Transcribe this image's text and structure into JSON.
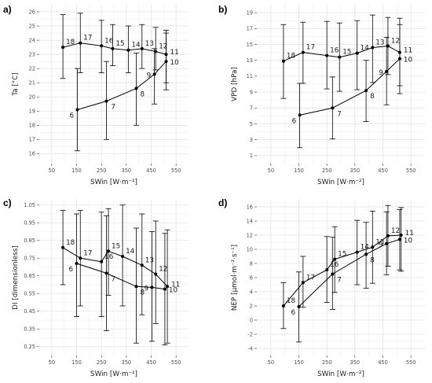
{
  "chart_data": [
    {
      "panel": "a)",
      "type": "line",
      "xlabel": "SWin [W·m⁻²]",
      "ylabel": "Ta [°C]",
      "xlim": [
        0,
        600
      ],
      "xticks": [
        50,
        150,
        250,
        350,
        450,
        550
      ],
      "ylim": [
        15.3,
        26.5
      ],
      "yticks": [
        16,
        17,
        18,
        19,
        20,
        21,
        22,
        23,
        24,
        25,
        26
      ],
      "series": [
        {
          "points": [
            {
              "label": "18",
              "x": 95,
              "y": 23.5,
              "lo": 21.3,
              "hi": 25.8
            },
            {
              "label": "17",
              "x": 165,
              "y": 23.8,
              "lo": 21.7,
              "hi": 25.9
            },
            {
              "label": "16",
              "x": 250,
              "y": 23.6,
              "lo": 21.7,
              "hi": 25.4
            },
            {
              "label": "15",
              "x": 295,
              "y": 23.4,
              "lo": 22.2,
              "hi": 25.1
            },
            {
              "label": "14",
              "x": 358,
              "y": 23.3,
              "lo": 21.7,
              "hi": 25.0
            },
            {
              "label": "13",
              "x": 413,
              "y": 23.4,
              "lo": 22.0,
              "hi": 25.1
            },
            {
              "label": "12",
              "x": 468,
              "y": 23.2,
              "lo": 21.9,
              "hi": 24.9
            },
            {
              "label": "11",
              "x": 510,
              "y": 23.0,
              "lo": 21.0,
              "hi": 24.7
            }
          ]
        },
        {
          "points": [
            {
              "label": "6",
              "x": 153,
              "y": 19.1,
              "lo": 16.2,
              "hi": 22.0
            },
            {
              "label": "7",
              "x": 270,
              "y": 19.7,
              "lo": 17.0,
              "hi": 22.5
            },
            {
              "label": "8",
              "x": 390,
              "y": 20.6,
              "lo": 18.0,
              "hi": 23.1
            },
            {
              "label": "9",
              "x": 463,
              "y": 21.6,
              "lo": 19.5,
              "hi": 23.4
            },
            {
              "label": "10",
              "x": 510,
              "y": 22.5,
              "lo": 20.5,
              "hi": 24.5
            }
          ]
        }
      ]
    },
    {
      "panel": "b)",
      "type": "line",
      "xlabel": "SWin [W·m⁻²]",
      "ylabel": "VPD [hPa]",
      "xlim": [
        0,
        600
      ],
      "xticks": [
        50,
        150,
        250,
        350,
        450,
        550
      ],
      "ylim": [
        0,
        20
      ],
      "yticks": [
        1,
        3,
        5,
        7,
        9,
        11,
        13,
        15,
        17,
        19
      ],
      "series": [
        {
          "points": [
            {
              "label": "18",
              "x": 95,
              "y": 12.9,
              "lo": 8.2,
              "hi": 17.5
            },
            {
              "label": "17",
              "x": 165,
              "y": 14.0,
              "lo": 10.1,
              "hi": 17.8
            },
            {
              "label": "16",
              "x": 250,
              "y": 13.6,
              "lo": 9.4,
              "hi": 17.9
            },
            {
              "label": "15",
              "x": 295,
              "y": 13.4,
              "lo": 9.1,
              "hi": 17.7
            },
            {
              "label": "14",
              "x": 358,
              "y": 13.9,
              "lo": 9.3,
              "hi": 18.0
            },
            {
              "label": "13",
              "x": 413,
              "y": 14.6,
              "lo": 10.2,
              "hi": 18.7
            },
            {
              "label": "12",
              "x": 468,
              "y": 14.8,
              "lo": 11.2,
              "hi": 18.4
            },
            {
              "label": "11",
              "x": 510,
              "y": 14.0,
              "lo": 9.8,
              "hi": 18.3
            }
          ]
        },
        {
          "points": [
            {
              "label": "6",
              "x": 153,
              "y": 6.1,
              "lo": 2.0,
              "hi": 10.1
            },
            {
              "label": "7",
              "x": 270,
              "y": 7.0,
              "lo": 3.1,
              "hi": 10.9
            },
            {
              "label": "8",
              "x": 390,
              "y": 9.2,
              "lo": 5.3,
              "hi": 13.0
            },
            {
              "label": "9",
              "x": 463,
              "y": 11.6,
              "lo": 7.4,
              "hi": 15.9
            },
            {
              "label": "10",
              "x": 510,
              "y": 13.2,
              "lo": 8.8,
              "hi": 17.5
            }
          ]
        }
      ]
    },
    {
      "panel": "c)",
      "type": "line",
      "xlabel": "SWin [W·m⁻²]",
      "ylabel": "DI [dimensionless]",
      "xlim": [
        0,
        600
      ],
      "xticks": [
        50,
        150,
        250,
        350,
        450,
        550
      ],
      "ylim": [
        0.2,
        1.08
      ],
      "yticks": [
        0.25,
        0.35,
        0.45,
        0.55,
        0.65,
        0.75,
        0.85,
        0.95,
        1.05
      ],
      "series": [
        {
          "points": [
            {
              "label": "18",
              "x": 95,
              "y": 0.81,
              "lo": 0.6,
              "hi": 1.02
            },
            {
              "label": "17",
              "x": 165,
              "y": 0.75,
              "lo": 0.48,
              "hi": 1.02
            },
            {
              "label": "16",
              "x": 250,
              "y": 0.73,
              "lo": 0.42,
              "hi": 1.01
            },
            {
              "label": "15",
              "x": 278,
              "y": 0.79,
              "lo": 0.54,
              "hi": 1.03
            },
            {
              "label": "14",
              "x": 335,
              "y": 0.76,
              "lo": 0.48,
              "hi": 1.05
            },
            {
              "label": "13",
              "x": 413,
              "y": 0.71,
              "lo": 0.43,
              "hi": 1.0
            },
            {
              "label": "12",
              "x": 468,
              "y": 0.66,
              "lo": 0.38,
              "hi": 0.96
            },
            {
              "label": "11",
              "x": 515,
              "y": 0.59,
              "lo": 0.27,
              "hi": 0.91
            }
          ]
        },
        {
          "points": [
            {
              "label": "6",
              "x": 150,
              "y": 0.72,
              "lo": 0.42,
              "hi": 1.0
            },
            {
              "label": "7",
              "x": 270,
              "y": 0.665,
              "lo": 0.34,
              "hi": 0.99
            },
            {
              "label": "8",
              "x": 390,
              "y": 0.59,
              "lo": 0.27,
              "hi": 0.92
            },
            {
              "label": "9",
              "x": 453,
              "y": 0.585,
              "lo": 0.28,
              "hi": 0.9
            },
            {
              "label": "10",
              "x": 505,
              "y": 0.575,
              "lo": 0.26,
              "hi": 0.89
            }
          ]
        }
      ]
    },
    {
      "panel": "d)",
      "type": "line",
      "xlabel": "SWin [W·m⁻²]",
      "ylabel": "NEP [µmol·m⁻²·s⁻¹]",
      "xlim": [
        0,
        600
      ],
      "xticks": [
        50,
        150,
        250,
        350,
        450,
        550
      ],
      "ylim": [
        -5,
        17
      ],
      "yticks": [
        -4,
        -2,
        0,
        2,
        4,
        6,
        8,
        10,
        12,
        14,
        16
      ],
      "series": [
        {
          "points": [
            {
              "label": "18",
              "x": 95,
              "y": 2.0,
              "lo": -1.2,
              "hi": 5.3
            },
            {
              "label": "17",
              "x": 165,
              "y": 5.3,
              "lo": 1.8,
              "hi": 9.0
            },
            {
              "label": "16",
              "x": 250,
              "y": 7.1,
              "lo": 2.5,
              "hi": 11.8
            },
            {
              "label": "15",
              "x": 278,
              "y": 8.6,
              "lo": 3.9,
              "hi": 13.2
            },
            {
              "label": "14",
              "x": 358,
              "y": 9.6,
              "lo": 5.0,
              "hi": 14.1
            },
            {
              "label": "13",
              "x": 413,
              "y": 10.3,
              "lo": 5.2,
              "hi": 15.4
            },
            {
              "label": "12",
              "x": 468,
              "y": 11.9,
              "lo": 7.6,
              "hi": 16.2
            },
            {
              "label": "11",
              "x": 515,
              "y": 12.0,
              "lo": 6.9,
              "hi": 15.9
            }
          ]
        },
        {
          "points": [
            {
              "label": "6",
              "x": 150,
              "y": 1.9,
              "lo": -3.1,
              "hi": 6.8
            },
            {
              "label": "7",
              "x": 270,
              "y": 6.5,
              "lo": 1.5,
              "hi": 11.7
            },
            {
              "label": "8",
              "x": 390,
              "y": 9.3,
              "lo": 4.5,
              "hi": 13.8
            },
            {
              "label": "9",
              "x": 463,
              "y": 10.8,
              "lo": 6.4,
              "hi": 15.3
            },
            {
              "label": "10",
              "x": 510,
              "y": 11.4,
              "lo": 7.1,
              "hi": 15.6
            }
          ]
        }
      ]
    }
  ]
}
